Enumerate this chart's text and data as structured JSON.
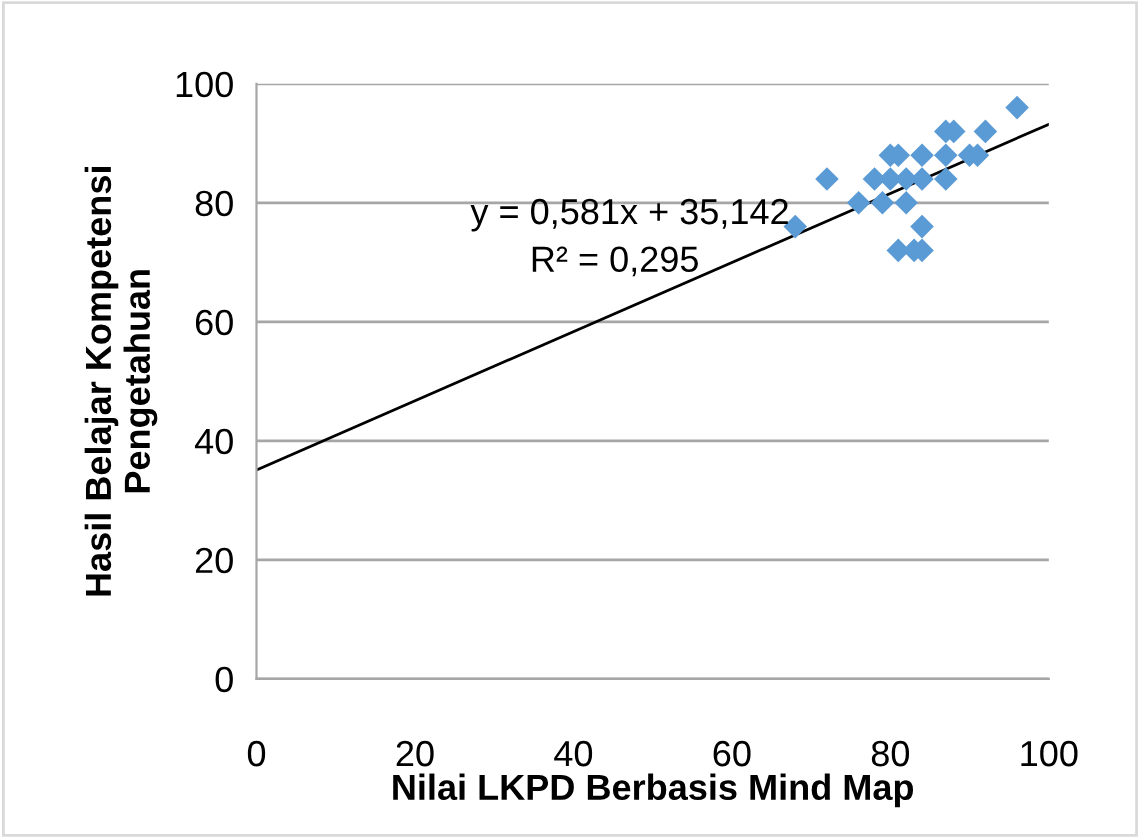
{
  "chart_data": {
    "type": "scatter",
    "xlabel": "Nilai LKPD Berbasis Mind Map",
    "ylabel": "Hasil Belajar Kompetensi\nPengetahuan",
    "xlim": [
      0,
      100
    ],
    "xticks": [
      0,
      20,
      40,
      60,
      80,
      100
    ],
    "ylim": [
      0,
      100
    ],
    "yticks": [
      0,
      20,
      40,
      60,
      80,
      100
    ],
    "grid": "y",
    "legend": false,
    "annotations": [
      "y = 0,581x + 35,142",
      "R² = 0,295"
    ],
    "series": [
      {
        "marker": "diamond",
        "color": "#5b9bd5",
        "x": [
          68,
          72,
          76,
          78,
          79,
          80,
          81,
          80,
          82,
          82,
          84,
          84,
          84,
          81,
          83,
          84,
          87,
          87,
          87,
          88,
          90,
          91,
          92,
          96
        ],
        "values": [
          76,
          84,
          80,
          84,
          80,
          88,
          88,
          84,
          84,
          80,
          88,
          84,
          76,
          72,
          72,
          72,
          84,
          88,
          92,
          92,
          88,
          88,
          92,
          96
        ]
      },
      {
        "type": "line",
        "marker": "none",
        "color": "#000000",
        "x": [
          0,
          100
        ],
        "values": [
          35.1,
          93.2
        ]
      }
    ]
  }
}
